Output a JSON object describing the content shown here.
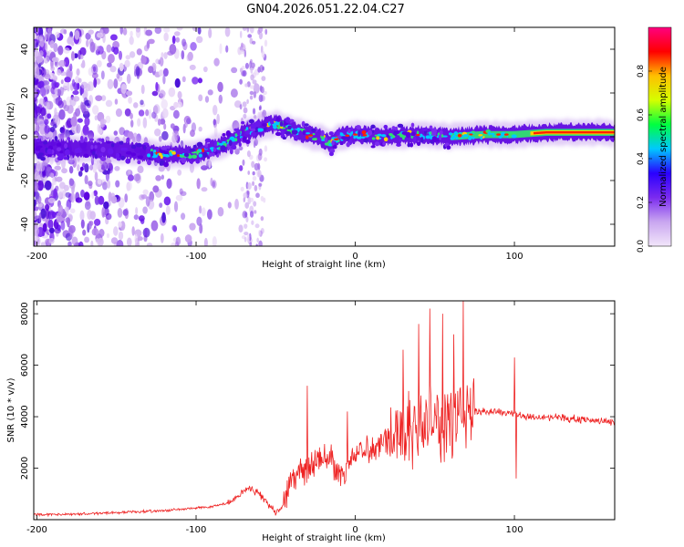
{
  "figure_title": "GN04.2026.051.22.04.C27",
  "colors": {
    "snr_line": "#ee2222",
    "spectrogram_ridge": [
      "#5a00e0",
      "#00c8ff",
      "#30e070",
      "#ffd000",
      "#ff2000"
    ],
    "colorbar_stops": [
      "#f2e6fa",
      "#c9a6f0",
      "#7b2bef",
      "#2a00ff",
      "#00c8ff",
      "#00ff40",
      "#d4ff00",
      "#ffc000",
      "#ff0000",
      "#ff0080"
    ]
  },
  "chart_data": [
    {
      "type": "heatmap",
      "title": "",
      "xlabel": "Height of straight line (km)",
      "ylabel": "Frequency (Hz)",
      "xlim": [
        -202,
        163
      ],
      "ylim": [
        -50,
        50
      ],
      "xticks": [
        -200,
        -100,
        0,
        100
      ],
      "xtick_labels": [
        "-200",
        "-100",
        "0",
        "100"
      ],
      "yticks": [
        -40,
        -20,
        0,
        20,
        40
      ],
      "ytick_labels": [
        "-40",
        "-20",
        "0",
        "20",
        "40"
      ],
      "ridge_x": [
        -200,
        -150,
        -120,
        -100,
        -80,
        -70,
        -60,
        -50,
        -40,
        -30,
        -20,
        -15,
        -10,
        0,
        20,
        40,
        60,
        80,
        100,
        120,
        163
      ],
      "ridge_freq": [
        -5,
        -6,
        -8,
        -8,
        -3,
        2,
        4,
        6,
        3,
        1,
        -1,
        -3,
        0,
        1,
        0,
        1,
        0,
        1,
        1,
        2,
        2
      ],
      "colorbar": {
        "label": "Normalized spectral amplitude",
        "range": [
          0,
          1
        ],
        "ticks": [
          0.0,
          0.2,
          0.4,
          0.6,
          0.8
        ],
        "tick_labels": [
          "0.0",
          "0.2",
          "0.4",
          "0.6",
          "0.8"
        ]
      }
    },
    {
      "type": "line",
      "title": "",
      "xlabel": "Height of straight line (km)",
      "ylabel": "SNR (10 * v/v)",
      "xlim": [
        -202,
        163
      ],
      "ylim": [
        0,
        8500
      ],
      "xticks": [
        -200,
        -100,
        0,
        100
      ],
      "xtick_labels": [
        "-200",
        "-100",
        "0",
        "100"
      ],
      "yticks": [
        2000,
        4000,
        6000,
        8000
      ],
      "ytick_labels": [
        "2000",
        "4000",
        "6000",
        "8000"
      ],
      "series": [
        {
          "name": "SNR",
          "x": [
            -202,
            -180,
            -160,
            -140,
            -120,
            -100,
            -90,
            -80,
            -75,
            -70,
            -65,
            -60,
            -55,
            -50,
            -45,
            -42,
            -40,
            -35,
            -30,
            -25,
            -20,
            -15,
            -10,
            -5,
            0,
            10,
            20,
            30,
            40,
            50,
            60,
            66,
            70,
            75,
            80,
            90,
            100,
            110,
            120,
            140,
            163
          ],
          "y": [
            200,
            200,
            250,
            300,
            350,
            450,
            500,
            650,
            800,
            1100,
            1200,
            1000,
            600,
            300,
            600,
            1200,
            1500,
            1800,
            2000,
            2200,
            2300,
            2400,
            1700,
            2000,
            2500,
            2800,
            3200,
            3500,
            3600,
            3700,
            3800,
            3900,
            4300,
            4200,
            4200,
            4200,
            4100,
            4000,
            4000,
            3900,
            3800
          ]
        }
      ],
      "annotations_peaks": [
        {
          "x": -30,
          "y": 5200
        },
        {
          "x": -5,
          "y": 4200
        },
        {
          "x": 30,
          "y": 6600
        },
        {
          "x": 40,
          "y": 7600
        },
        {
          "x": 47,
          "y": 8200
        },
        {
          "x": 55,
          "y": 8000
        },
        {
          "x": 62,
          "y": 7200
        },
        {
          "x": 68,
          "y": 8500
        },
        {
          "x": 100,
          "y": 6300
        },
        {
          "x": 101,
          "y": 1600
        }
      ]
    }
  ]
}
